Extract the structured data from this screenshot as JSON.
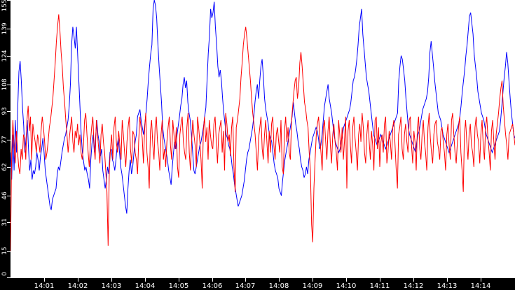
{
  "chart_data": {
    "type": "line",
    "title": "",
    "xlabel": "",
    "ylabel": "",
    "ylim": [
      0,
      155
    ],
    "y_ticks": [
      "0",
      "15",
      "31",
      "46",
      "62",
      "77",
      "93",
      "108",
      "124",
      "139",
      "155"
    ],
    "x_ticks": [
      "14:01",
      "14:02",
      "14:03",
      "14:04",
      "14:05",
      "14:06",
      "14:07",
      "14:08",
      "14:09",
      "14:10",
      "14:11",
      "14:12",
      "14:13",
      "14:14"
    ],
    "grid": false,
    "legend": null,
    "series": [
      {
        "name": "blue",
        "color": "#0000ff",
        "values": [
          70,
          55,
          80,
          60,
          88,
          70,
          95,
          115,
          121,
          110,
          95,
          85,
          70,
          78,
          88,
          72,
          60,
          66,
          55,
          60,
          58,
          62,
          70,
          66,
          60,
          68,
          72,
          78,
          70,
          60,
          55,
          50,
          45,
          40,
          38,
          44,
          46,
          48,
          50,
          58,
          62,
          60,
          65,
          70,
          74,
          78,
          80,
          84,
          88,
          96,
          108,
          130,
          140,
          135,
          128,
          140,
          125,
          110,
          95,
          80,
          70,
          65,
          60,
          62,
          58,
          55,
          50,
          66,
          75,
          80,
          70,
          78,
          88,
          80,
          76,
          68,
          72,
          60,
          55,
          50,
          55,
          62,
          58,
          70,
          72,
          66,
          64,
          60,
          66,
          74,
          78,
          70,
          62,
          58,
          52,
          46,
          40,
          36,
          50,
          60,
          66,
          58,
          62,
          70,
          76,
          80,
          90,
          92,
          94,
          88,
          84,
          80,
          85,
          92,
          100,
          110,
          118,
          125,
          130,
          150,
          155,
          152,
          145,
          130,
          118,
          108,
          98,
          84,
          78,
          74,
          70,
          66,
          60,
          56,
          52,
          62,
          70,
          76,
          72,
          80,
          85,
          90,
          96,
          100,
          108,
          112,
          106,
          110,
          98,
          92,
          88,
          80,
          70,
          60,
          58,
          62,
          66,
          70,
          74,
          76,
          80,
          84,
          90,
          95,
          110,
          125,
          135,
          150,
          145,
          148,
          154,
          140,
          130,
          118,
          112,
          116,
          110,
          100,
          92,
          86,
          80,
          78,
          74,
          72,
          68,
          62,
          58,
          52,
          48,
          44,
          40,
          42,
          44,
          46,
          50,
          54,
          60,
          66,
          70,
          72,
          76,
          80,
          84,
          90,
          98,
          104,
          108,
          100,
          110,
          118,
          122,
          112,
          100,
          94,
          90,
          86,
          80,
          78,
          76,
          70,
          64,
          60,
          58,
          56,
          50,
          48,
          46,
          54,
          60,
          66,
          70,
          74,
          78,
          82,
          86,
          90,
          98,
          92,
          86,
          82,
          76,
          72,
          66,
          62,
          60,
          56,
          58,
          62,
          58,
          66,
          70,
          74,
          78,
          80,
          82,
          84,
          82,
          78,
          72,
          74,
          80,
          88,
          96,
          100,
          104,
          108,
          100,
          96,
          92,
          86,
          80,
          76,
          74,
          72,
          70,
          72,
          76,
          80,
          84,
          86,
          88,
          90,
          92,
          94,
          98,
          104,
          110,
          112,
          116,
          122,
          130,
          140,
          145,
          150,
          136,
          128,
          120,
          112,
          108,
          104,
          98,
          92,
          86,
          80,
          78,
          76,
          74,
          76,
          78,
          80,
          78,
          76,
          74,
          72,
          74,
          76,
          78,
          80,
          82,
          84,
          86,
          88,
          90,
          92,
          110,
          118,
          124,
          122,
          116,
          110,
          100,
          92,
          84,
          80,
          78,
          76,
          74,
          72,
          70,
          76,
          80,
          82,
          86,
          90,
          94,
          96,
          98,
          100,
          104,
          112,
          126,
          132,
          125,
          118,
          110,
          104,
          98,
          92,
          90,
          88,
          84,
          80,
          78,
          76,
          74,
          72,
          70,
          72,
          74,
          76,
          78,
          80,
          82,
          84,
          86,
          90,
          96,
          104,
          110,
          116,
          124,
          130,
          138,
          146,
          148,
          142,
          136,
          124,
          118,
          112,
          104,
          100,
          96,
          92,
          90,
          88,
          84,
          80,
          78,
          76,
          74,
          72,
          70,
          72,
          74,
          76,
          78,
          80,
          82,
          88,
          96,
          104,
          112,
          118,
          126,
          120,
          110,
          100,
          92,
          86,
          80,
          78
        ]
      },
      {
        "name": "red",
        "color": "#ff0000",
        "values": [
          15,
          70,
          88,
          74,
          64,
          82,
          70,
          62,
          58,
          72,
          66,
          80,
          78,
          66,
          88,
          96,
          82,
          90,
          66,
          86,
          80,
          76,
          70,
          80,
          76,
          70,
          82,
          90,
          84,
          76,
          66,
          70,
          76,
          84,
          88,
          94,
          100,
          110,
          120,
          132,
          140,
          147,
          138,
          126,
          118,
          106,
          98,
          88,
          80,
          70,
          78,
          84,
          90,
          76,
          70,
          82,
          78,
          86,
          74,
          80,
          70,
          66,
          74,
          88,
          92,
          80,
          70,
          62,
          76,
          84,
          90,
          74,
          66,
          88,
          80,
          72,
          64,
          80,
          86,
          76,
          70,
          60,
          48,
          18,
          60,
          72,
          80,
          66,
          84,
          90,
          76,
          70,
          82,
          74,
          66,
          88,
          80,
          70,
          62,
          76,
          84,
          90,
          72,
          64,
          82,
          80,
          70,
          66,
          58,
          76,
          90,
          84,
          78,
          64,
          82,
          92,
          70,
          62,
          50,
          82,
          88,
          74,
          66,
          84,
          90,
          76,
          70,
          60,
          80,
          88,
          66,
          72,
          62,
          76,
          84,
          90,
          74,
          66,
          88,
          80,
          72,
          84,
          62,
          56,
          80,
          86,
          90,
          76,
          70,
          66,
          84,
          92,
          70,
          60,
          76,
          88,
          80,
          74,
          62,
          90,
          84,
          76,
          66,
          50,
          82,
          90,
          76,
          84,
          66,
          88,
          80,
          74,
          72,
          86,
          90,
          76,
          64,
          80,
          84,
          88,
          70,
          82,
          60,
          92,
          86,
          76,
          80,
          68,
          84,
          90,
          62,
          48,
          84,
          88,
          94,
          100,
          112,
          120,
          130,
          136,
          140,
          134,
          126,
          118,
          110,
          100,
          92,
          86,
          80,
          70,
          60,
          78,
          84,
          90,
          72,
          66,
          80,
          88,
          76,
          64,
          82,
          70,
          86,
          90,
          74,
          66,
          80,
          84,
          76,
          70,
          88,
          62,
          58,
          82,
          90,
          76,
          84,
          70,
          66,
          88,
          96,
          104,
          110,
          112,
          100,
          106,
          120,
          126,
          118,
          108,
          98,
          94,
          88,
          84,
          70,
          60,
          30,
          20,
          50,
          66,
          80,
          86,
          90,
          78,
          70,
          60,
          84,
          88,
          76,
          66,
          82,
          90,
          74,
          64,
          80,
          86,
          76,
          70,
          60,
          88,
          80,
          70,
          84,
          66,
          76,
          90,
          50,
          82,
          88,
          74,
          64,
          84,
          90,
          78,
          70,
          60,
          80,
          86,
          76,
          92,
          84,
          70,
          64,
          80,
          88,
          76,
          66,
          82,
          74,
          60,
          88,
          90,
          72,
          84,
          62,
          76,
          80,
          70,
          86,
          90,
          64,
          70,
          82,
          76,
          66,
          84,
          88,
          74,
          60,
          50,
          80,
          84,
          90,
          72,
          66,
          80,
          86,
          76,
          70,
          88,
          90,
          74,
          64,
          82,
          76,
          60,
          84,
          90,
          72,
          66,
          80,
          88,
          76,
          70,
          60,
          84,
          92,
          78,
          70,
          64,
          80,
          86,
          88,
          76,
          72,
          66,
          82,
          84,
          76,
          70,
          60,
          80,
          86,
          74,
          66,
          88,
          92,
          80,
          70,
          64,
          76,
          84,
          90,
          70,
          60,
          48,
          80,
          88,
          76,
          66,
          80,
          86,
          74,
          70,
          62,
          84,
          90,
          80,
          76,
          64,
          80,
          88,
          74,
          66,
          84,
          90,
          78,
          70,
          60,
          82,
          88,
          76,
          66,
          80,
          86,
          92,
          100,
          106,
          110,
          96,
          88,
          80,
          74,
          66,
          80,
          82,
          84,
          86,
          80,
          74
        ]
      }
    ]
  }
}
